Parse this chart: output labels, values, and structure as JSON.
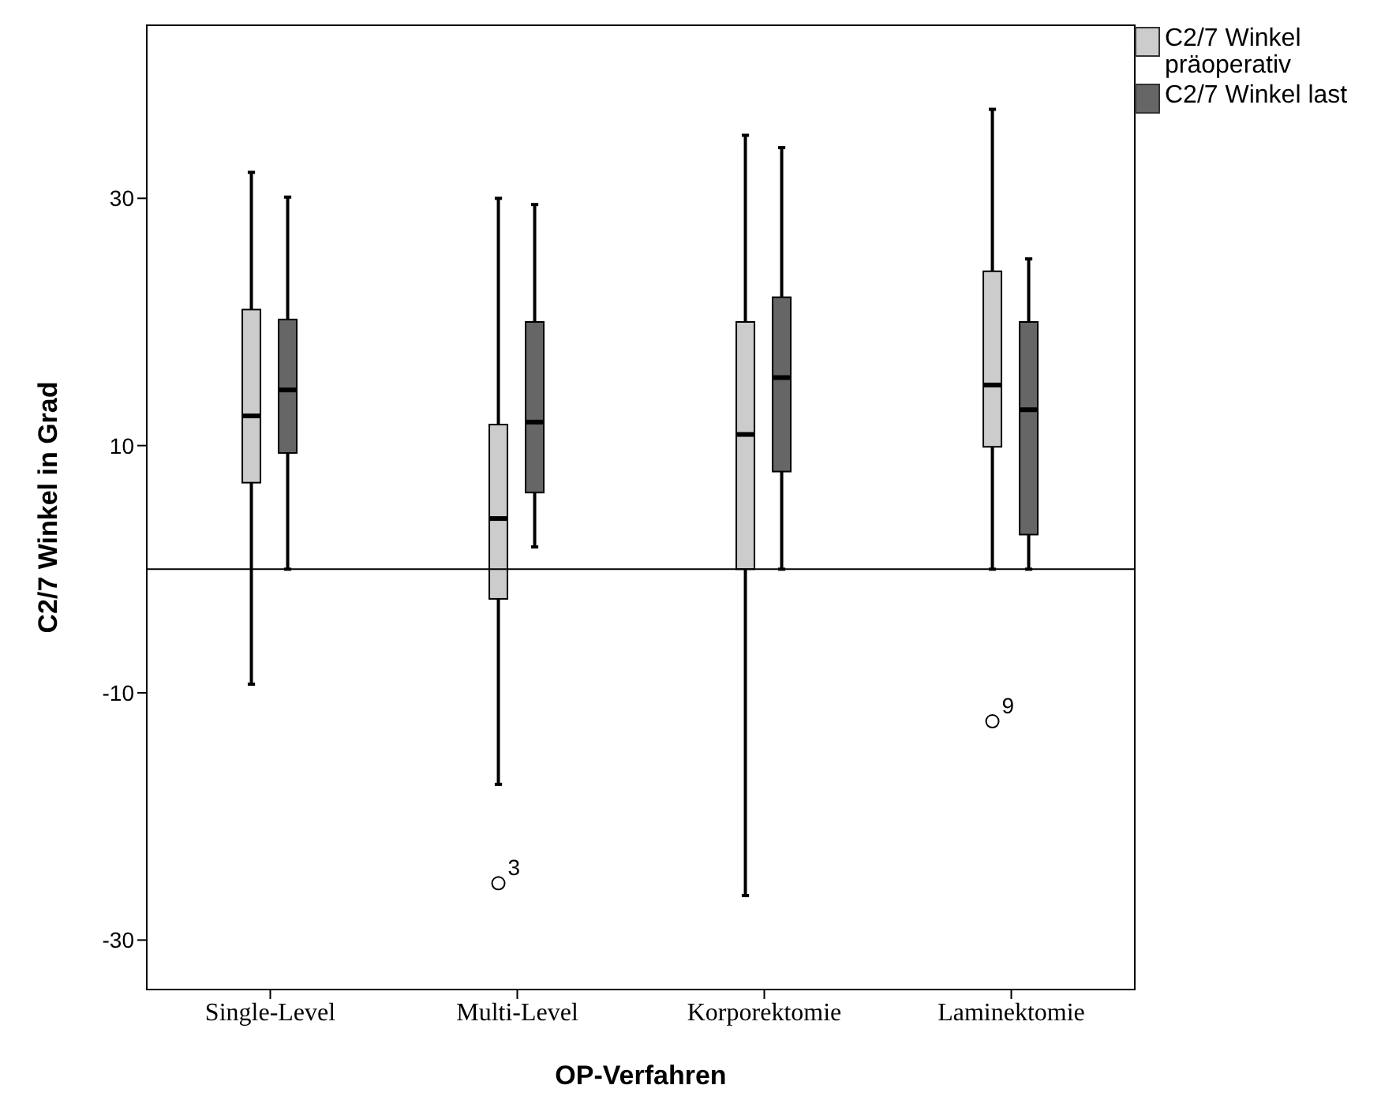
{
  "chart_data": {
    "type": "box",
    "categories": [
      "Single-Level",
      "Multi-Level",
      "Korporektomie",
      "Laminektomie"
    ],
    "series": [
      {
        "name": "C2/7 Winkel präoperativ",
        "color": "#cccccc",
        "boxes": [
          {
            "low": -9.3,
            "q1": 7,
            "median": 12.4,
            "q3": 21,
            "high": 32.1
          },
          {
            "low": -17.4,
            "q1": -2.4,
            "median": 4.1,
            "q3": 11.7,
            "high": 30,
            "outliers": [
              -25.4
            ]
          },
          {
            "low": -26.4,
            "q1": 0,
            "median": 10.9,
            "q3": 20,
            "high": 35.1
          },
          {
            "low": 0,
            "q1": 9.9,
            "median": 14.9,
            "q3": 24.1,
            "high": 37.2,
            "outliers": [
              -12.3
            ]
          }
        ]
      },
      {
        "name": "C2/7 Winkel last",
        "color": "#666666",
        "boxes": [
          {
            "low": 0,
            "q1": 9.4,
            "median": 14.5,
            "q3": 20.2,
            "high": 30.1
          },
          {
            "low": 1.8,
            "q1": 6.2,
            "median": 11.9,
            "q3": 20,
            "high": 29.5
          },
          {
            "low": 0,
            "q1": 7.9,
            "median": 15.5,
            "q3": 22,
            "high": 34.1
          },
          {
            "low": 0,
            "q1": 2.8,
            "median": 12.9,
            "q3": 20,
            "high": 25.1
          }
        ]
      }
    ],
    "ylim": [
      -34,
      44
    ],
    "yticks": [
      -30,
      -10,
      10,
      30
    ],
    "xlabel": "OP-Verfahren",
    "ylabel": "C2/7 Winkel in Grad",
    "legend": "top right",
    "grid": false,
    "ref_lines": [
      {
        "axis": "y",
        "value": 0
      }
    ],
    "annotations": [
      "3",
      "9"
    ]
  }
}
